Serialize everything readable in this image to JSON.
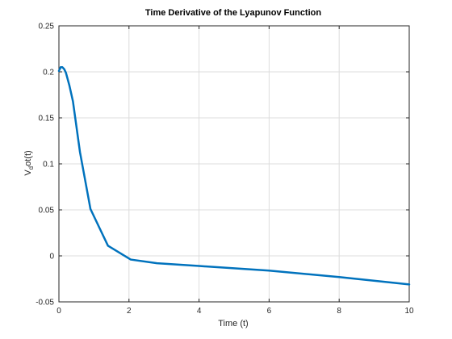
{
  "chart_data": {
    "type": "line",
    "title": "Time Derivative of the Lyapunov Function",
    "xlabel": "Time (t)",
    "ylabel_main": "V",
    "ylabel_sub": "d",
    "ylabel_rest": "ot(t)",
    "xlim": [
      0,
      10
    ],
    "ylim": [
      -0.05,
      0.25
    ],
    "xticks": [
      0,
      2,
      4,
      6,
      8,
      10
    ],
    "xtick_labels": [
      "0",
      "2",
      "4",
      "6",
      "8",
      "10"
    ],
    "yticks": [
      -0.05,
      0,
      0.05,
      0.1,
      0.15,
      0.2,
      0.25
    ],
    "ytick_labels": [
      "-0.05",
      "0",
      "0.05",
      "0.1",
      "0.15",
      "0.2",
      "0.25"
    ],
    "grid": true,
    "series": [
      {
        "color": "#0072BD",
        "x": [
          0,
          0.05,
          0.1,
          0.15,
          0.2,
          0.3,
          0.4,
          0.6,
          0.9,
          1.4,
          2.05,
          2.8,
          4.0,
          6.0,
          8.0,
          10.0
        ],
        "y": [
          0.201,
          0.205,
          0.205,
          0.203,
          0.199,
          0.185,
          0.168,
          0.113,
          0.051,
          0.011,
          -0.004,
          -0.008,
          -0.011,
          -0.016,
          -0.023,
          -0.031
        ]
      }
    ]
  }
}
